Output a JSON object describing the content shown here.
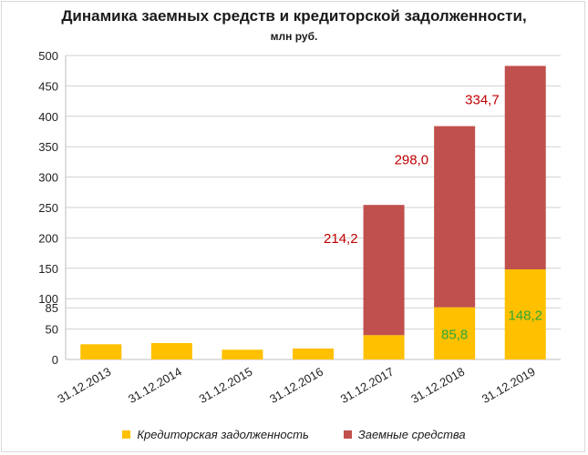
{
  "chart_data": {
    "type": "bar",
    "stacked": true,
    "title": "Динамика заемных средств и кредиторской задолженности,",
    "subtitle": "млн руб.",
    "categories": [
      "31.12.2013",
      "31.12.2014",
      "31.12.2015",
      "31.12.2016",
      "31.12.2017",
      "31.12.2018",
      "31.12.2019"
    ],
    "series": [
      {
        "name": "Кредиторская задолженность",
        "color": "#FFC000",
        "values": [
          25,
          27,
          16,
          18,
          40,
          85.8,
          148.2
        ],
        "data_labels": [
          "",
          "",
          "",
          "",
          "",
          "85,8",
          "148,2"
        ],
        "label_color": "#2EA836"
      },
      {
        "name": "Заемные средства",
        "color": "#C0504D",
        "values": [
          0,
          0,
          0,
          0,
          214.2,
          298.0,
          334.7
        ],
        "data_labels": [
          "",
          "",
          "",
          "",
          "214,2",
          "298,0",
          "334,7"
        ],
        "label_color": "#C00000"
      }
    ],
    "yticks": [
      "0",
      "50",
      "85",
      "100",
      "150",
      "200",
      "250",
      "300",
      "350",
      "400",
      "450",
      "500"
    ],
    "ytick_values": [
      0,
      50,
      85,
      100,
      150,
      200,
      250,
      300,
      350,
      400,
      450,
      500
    ],
    "ylim": [
      0,
      500
    ],
    "grid": true,
    "legend_position": "bottom"
  }
}
